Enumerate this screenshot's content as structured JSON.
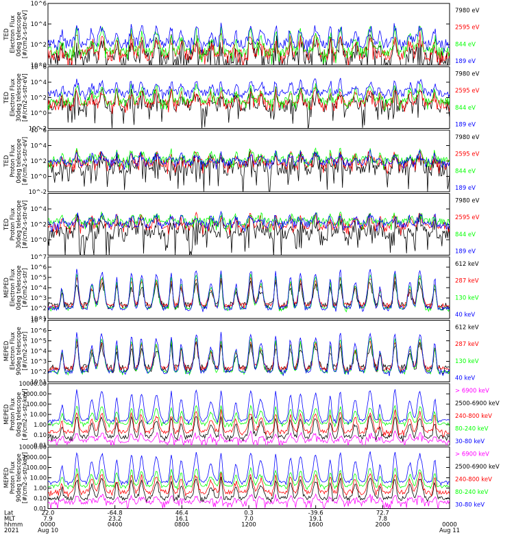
{
  "colors": {
    "black": "#000000",
    "red": "#ff0000",
    "green": "#00ff00",
    "blue": "#0000ff",
    "magenta": "#ff00ff"
  },
  "chart_data": {
    "type": "line",
    "x_axis": {
      "rows": [
        {
          "label": "Lat",
          "values": [
            "22.0",
            "-64.8",
            "46.4",
            "0.3",
            "-39.6",
            "72.7"
          ]
        },
        {
          "label": "MLT",
          "values": [
            "7.9",
            "23.2",
            "16.1",
            "7.0",
            "19.1",
            "7.8"
          ]
        },
        {
          "label": "hhmm",
          "values": [
            "0000",
            "0400",
            "0800",
            "1200",
            "1600",
            "2000",
            "0000"
          ]
        }
      ],
      "year": "2021",
      "dates": [
        {
          "text": "Aug 10"
        },
        {
          "text": "Aug 11"
        }
      ]
    },
    "panels": [
      {
        "ylabel": [
          "TED",
          "Electron Flux",
          "0deg telescope",
          "[#/cm2-s-str-eV]"
        ],
        "log": true,
        "ylim_exp": [
          0,
          6
        ],
        "ticks": [
          {
            "e": 0,
            "t": "10^0"
          },
          {
            "e": 2,
            "t": "10^2"
          },
          {
            "e": 4,
            "t": "10^4"
          },
          {
            "e": 6,
            "t": "10^6"
          }
        ],
        "series": [
          {
            "name": "7980 eV",
            "color": "black",
            "base": 0.6,
            "noise": 0.8,
            "peak": 2.6,
            "drop": 0.8
          },
          {
            "name": "2595 eV",
            "color": "red",
            "base": 1.0,
            "noise": 0.6,
            "peak": 2.8,
            "drop": 0.3
          },
          {
            "name": "844 eV",
            "color": "green",
            "base": 1.3,
            "noise": 0.5,
            "peak": 3.4,
            "drop": 0.3
          },
          {
            "name": "189 eV",
            "color": "blue",
            "base": 2.1,
            "noise": 0.5,
            "peak": 3.8,
            "drop": 0.2
          }
        ]
      },
      {
        "ylabel": [
          "TED",
          "Electron Flux",
          "30deg telescope",
          "[#/cm2-s-str-eV]"
        ],
        "log": true,
        "ylim_exp": [
          -2,
          6
        ],
        "ticks": [
          {
            "e": -2,
            "t": "10^-2"
          },
          {
            "e": 0,
            "t": "10^0"
          },
          {
            "e": 2,
            "t": "10^2"
          },
          {
            "e": 4,
            "t": "10^4"
          },
          {
            "e": 6,
            "t": "10^6"
          }
        ],
        "series": [
          {
            "name": "7980 eV",
            "color": "black",
            "base": 0.9,
            "noise": 0.8,
            "peak": 2.8,
            "drop": 0.9
          },
          {
            "name": "2595 eV",
            "color": "red",
            "base": 1.2,
            "noise": 0.6,
            "peak": 3.0,
            "drop": 0.3
          },
          {
            "name": "844 eV",
            "color": "green",
            "base": 1.5,
            "noise": 0.5,
            "peak": 3.6,
            "drop": 0.3
          },
          {
            "name": "189 eV",
            "color": "blue",
            "base": 2.6,
            "noise": 0.5,
            "peak": 4.2,
            "drop": 0.2
          }
        ]
      },
      {
        "ylabel": [
          "TED",
          "Proton Flux",
          "0deg telescope",
          "[#/cm2-s-str-eV]"
        ],
        "log": true,
        "ylim_exp": [
          -2,
          6
        ],
        "ticks": [
          {
            "e": -2,
            "t": "10^-2"
          },
          {
            "e": 0,
            "t": "10^0"
          },
          {
            "e": 2,
            "t": "10^2"
          },
          {
            "e": 4,
            "t": "10^4"
          },
          {
            "e": 6,
            "t": "10^6"
          }
        ],
        "series": [
          {
            "name": "7980 eV",
            "color": "black",
            "base": 1.0,
            "noise": 1.0,
            "peak": 2.5,
            "drop": 1.0
          },
          {
            "name": "2595 eV",
            "color": "red",
            "base": 1.6,
            "noise": 0.6,
            "peak": 3.0,
            "drop": 0.3
          },
          {
            "name": "844 eV",
            "color": "green",
            "base": 2.1,
            "noise": 0.5,
            "peak": 3.3,
            "drop": 0.3
          },
          {
            "name": "189 eV",
            "color": "blue",
            "base": 1.8,
            "noise": 0.5,
            "peak": 3.0,
            "drop": 0.2
          }
        ]
      },
      {
        "ylabel": [
          "TED",
          "Proton Flux",
          "30deg telescope",
          "[#/cm2-s-str-eV]"
        ],
        "log": true,
        "ylim_exp": [
          -2,
          6
        ],
        "ticks": [
          {
            "e": 0,
            "t": "10^0"
          },
          {
            "e": 2,
            "t": "10^2"
          },
          {
            "e": 4,
            "t": "10^4"
          }
        ],
        "series": [
          {
            "name": "7980 eV",
            "color": "black",
            "base": 0.8,
            "noise": 1.0,
            "peak": 2.5,
            "drop": 1.0
          },
          {
            "name": "2595 eV",
            "color": "red",
            "base": 1.8,
            "noise": 0.5,
            "peak": 3.2,
            "drop": 0.3
          },
          {
            "name": "844 eV",
            "color": "green",
            "base": 2.3,
            "noise": 0.5,
            "peak": 3.3,
            "drop": 0.3
          },
          {
            "name": "189 eV",
            "color": "blue",
            "base": 2.0,
            "noise": 0.5,
            "peak": 3.2,
            "drop": 0.2
          }
        ]
      },
      {
        "ylabel": [
          "MEPED",
          "Electron Flux",
          "0deg telescope",
          "[#/cm2-s-str]"
        ],
        "log": true,
        "ylim_exp": [
          1,
          7
        ],
        "ticks": [
          {
            "e": 1,
            "t": "10^1"
          },
          {
            "e": 2,
            "t": "10^2"
          },
          {
            "e": 3,
            "t": "10^3"
          },
          {
            "e": 4,
            "t": "10^4"
          },
          {
            "e": 5,
            "t": "10^5"
          },
          {
            "e": 6,
            "t": "10^6"
          },
          {
            "e": 7,
            "t": "10^7"
          }
        ],
        "series": [
          {
            "name": "612 keV",
            "color": "black",
            "base": 2.3,
            "noise": 0.3,
            "peak": 4.5,
            "drop": 0.1
          },
          {
            "name": "287 keV",
            "color": "red",
            "base": 2.3,
            "noise": 0.2,
            "peak": 5.0,
            "drop": 0.1
          },
          {
            "name": "130 keV",
            "color": "green",
            "base": 2.0,
            "noise": 0.1,
            "peak": 5.3,
            "drop": 0.1
          },
          {
            "name": "40 keV",
            "color": "blue",
            "base": 2.0,
            "noise": 0.2,
            "peak": 5.8,
            "drop": 0.1
          }
        ]
      },
      {
        "ylabel": [
          "MEPED",
          "Electron Flux",
          "90deg telescope",
          "[#/cm2-s-str]"
        ],
        "log": true,
        "ylim_exp": [
          1,
          7
        ],
        "ticks": [
          {
            "e": 1,
            "t": "10^1"
          },
          {
            "e": 2,
            "t": "10^2"
          },
          {
            "e": 3,
            "t": "10^3"
          },
          {
            "e": 4,
            "t": "10^4"
          },
          {
            "e": 5,
            "t": "10^5"
          },
          {
            "e": 6,
            "t": "10^6"
          },
          {
            "e": 7,
            "t": "10^7"
          }
        ],
        "series": [
          {
            "name": "612 keV",
            "color": "black",
            "base": 2.3,
            "noise": 0.4,
            "peak": 4.6,
            "drop": 0.1
          },
          {
            "name": "287 keV",
            "color": "red",
            "base": 2.3,
            "noise": 0.2,
            "peak": 5.0,
            "drop": 0.1
          },
          {
            "name": "130 keV",
            "color": "green",
            "base": 2.0,
            "noise": 0.1,
            "peak": 5.3,
            "drop": 0.1
          },
          {
            "name": "40 keV",
            "color": "blue",
            "base": 2.0,
            "noise": 0.2,
            "peak": 5.8,
            "drop": 0.1
          }
        ]
      },
      {
        "ylabel": [
          "MEPED",
          "Proton Flux",
          "0deg telescope",
          "[#/cm2-s-str-keV]"
        ],
        "log": true,
        "ylim_exp": [
          -2,
          4
        ],
        "ticks": [
          {
            "e": -2,
            "t": "0.01"
          },
          {
            "e": -1,
            "t": "0.10"
          },
          {
            "e": 0,
            "t": "1.00"
          },
          {
            "e": 1,
            "t": "10.00"
          },
          {
            "e": 2,
            "t": "100.00"
          },
          {
            "e": 3,
            "t": "1000.00"
          },
          {
            "e": 4,
            "t": "10000.00"
          }
        ],
        "series": [
          {
            "name": "> 6900 keV",
            "color": "magenta",
            "base": -1.6,
            "noise": 0.2,
            "peak": -0.8,
            "drop": 0.2
          },
          {
            "name": "2500-6900 keV",
            "color": "black",
            "base": -1.2,
            "noise": 0.2,
            "peak": 0.8,
            "drop": 0.1
          },
          {
            "name": "240-800 keV",
            "color": "red",
            "base": -0.7,
            "noise": 0.2,
            "peak": 1.3,
            "drop": 0.1
          },
          {
            "name": "80-240 keV",
            "color": "green",
            "base": 0.1,
            "noise": 0.1,
            "peak": 1.8,
            "drop": 0.1
          },
          {
            "name": "30-80 keV",
            "color": "blue",
            "base": 0.4,
            "noise": 0.1,
            "peak": 3.4,
            "drop": 0.1
          }
        ]
      },
      {
        "ylabel": [
          "MEPED",
          "Proton Flux",
          "90deg telescope",
          "[#/cm2-s-str-keV]"
        ],
        "log": true,
        "ylim_exp": [
          -2,
          4
        ],
        "ticks": [
          {
            "e": -2,
            "t": "0.01"
          },
          {
            "e": -1,
            "t": "0.10"
          },
          {
            "e": 0,
            "t": "1.00"
          },
          {
            "e": 1,
            "t": "10.00"
          },
          {
            "e": 2,
            "t": "100.00"
          },
          {
            "e": 3,
            "t": "1000.00"
          },
          {
            "e": 4,
            "t": "10000.00"
          }
        ],
        "series": [
          {
            "name": "> 6900 keV",
            "color": "magenta",
            "base": -1.4,
            "noise": 0.2,
            "peak": -0.7,
            "drop": 0.2
          },
          {
            "name": "2500-6900 keV",
            "color": "black",
            "base": -1.0,
            "noise": 0.2,
            "peak": 0.9,
            "drop": 0.1
          },
          {
            "name": "240-800 keV",
            "color": "red",
            "base": -0.4,
            "noise": 0.2,
            "peak": 1.4,
            "drop": 0.1
          },
          {
            "name": "80-240 keV",
            "color": "green",
            "base": 0.2,
            "noise": 0.1,
            "peak": 1.9,
            "drop": 0.1
          },
          {
            "name": "30-80 keV",
            "color": "blue",
            "base": 0.6,
            "noise": 0.1,
            "peak": 3.5,
            "drop": 0.1
          }
        ]
      }
    ]
  }
}
